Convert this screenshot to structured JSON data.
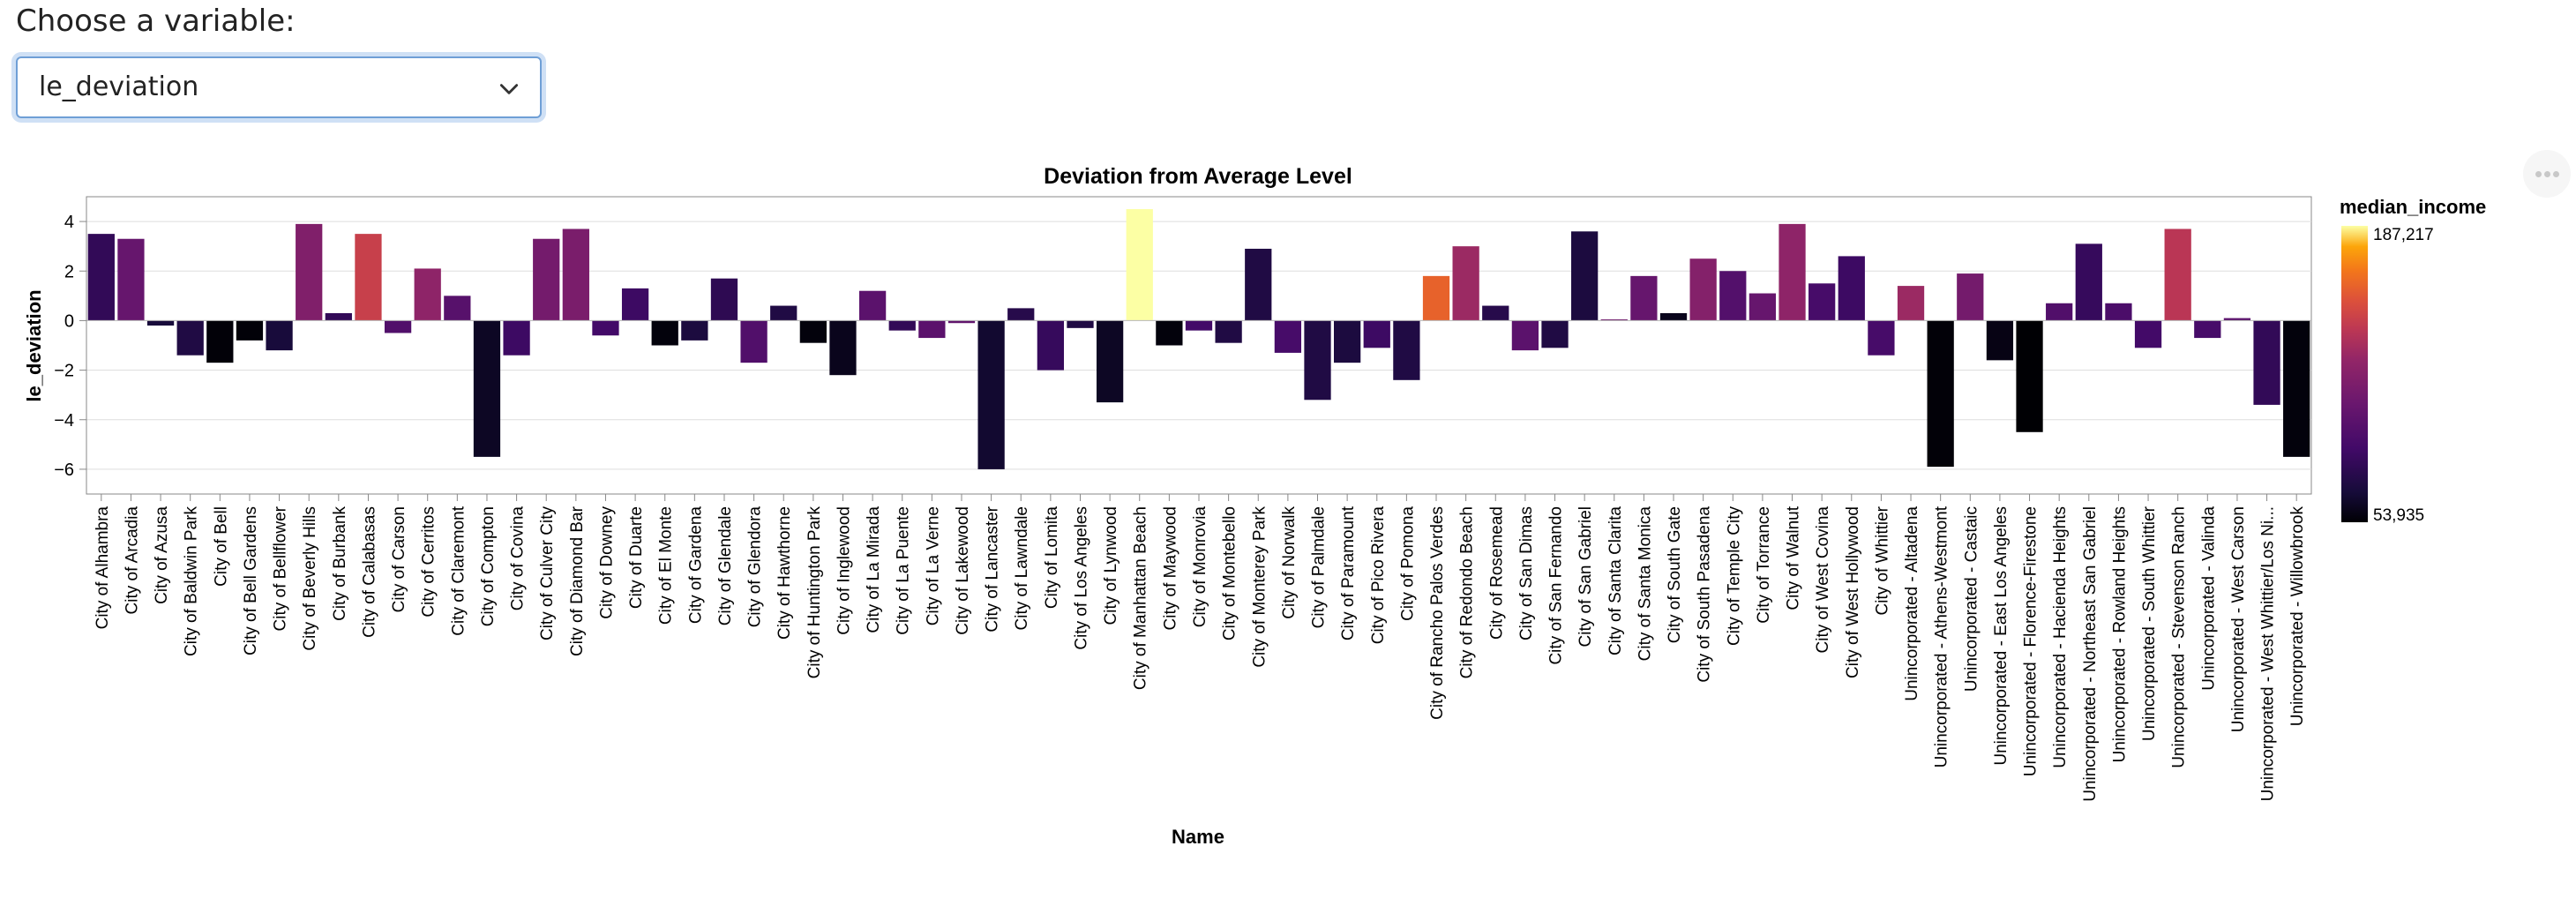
{
  "control": {
    "prompt": "Choose a variable:",
    "selected": "le_deviation"
  },
  "chart_data": {
    "type": "bar",
    "title": "Deviation from Average Level",
    "xlabel": "Name",
    "ylabel": "le_deviation",
    "ylim": [
      -7,
      5
    ],
    "yticks": [
      4,
      2,
      0,
      -2,
      -4,
      -6
    ],
    "grid": true,
    "legend": {
      "title": "median_income",
      "min_label": "53,935",
      "max_label": "187,217",
      "min": 53935,
      "max": 187217,
      "placement": "right"
    },
    "categories": [
      "City of Alhambra",
      "City of Arcadia",
      "City of Azusa",
      "City of Baldwin Park",
      "City of Bell",
      "City of Bell Gardens",
      "City of Bellflower",
      "City of Beverly Hills",
      "City of Burbank",
      "City of Calabasas",
      "City of Carson",
      "City of Cerritos",
      "City of Claremont",
      "City of Compton",
      "City of Covina",
      "City of Culver City",
      "City of Diamond Bar",
      "City of Downey",
      "City of Duarte",
      "City of El Monte",
      "City of Gardena",
      "City of Glendale",
      "City of Glendora",
      "City of Hawthorne",
      "City of Huntington Park",
      "City of Inglewood",
      "City of La Mirada",
      "City of La Puente",
      "City of La Verne",
      "City of Lakewood",
      "City of Lancaster",
      "City of Lawndale",
      "City of Lomita",
      "City of Los Angeles",
      "City of Lynwood",
      "City of Manhattan Beach",
      "City of Maywood",
      "City of Monrovia",
      "City of Montebello",
      "City of Monterey Park",
      "City of Norwalk",
      "City of Palmdale",
      "City of Paramount",
      "City of Pico Rivera",
      "City of Pomona",
      "City of Rancho Palos Verdes",
      "City of Redondo Beach",
      "City of Rosemead",
      "City of San Dimas",
      "City of San Fernando",
      "City of San Gabriel",
      "City of Santa Clarita",
      "City of Santa Monica",
      "City of South Gate",
      "City of South Pasadena",
      "City of Temple City",
      "City of Torrance",
      "City of Walnut",
      "City of West Covina",
      "City of West Hollywood",
      "City of Whittier",
      "Unincorporated - Altadena",
      "Unincorporated - Athens-Westmont",
      "Unincorporated - Castaic",
      "Unincorporated - East Los Angeles",
      "Unincorporated - Florence-Firestone",
      "Unincorporated - Hacienda Heights",
      "Unincorporated - Northeast San Gabriel",
      "Unincorporated - Rowland Heights",
      "Unincorporated - South Whittier",
      "Unincorporated - Stevenson Ranch",
      "Unincorporated - Valinda",
      "Unincorporated - West Carson",
      "Unincorporated - West Whittier/Los Ni...",
      "Unincorporated - Willowbrook"
    ],
    "values": [
      3.5,
      3.3,
      -0.2,
      -1.4,
      -1.7,
      -0.8,
      -1.2,
      3.9,
      0.3,
      3.5,
      -0.5,
      2.1,
      1.0,
      -5.5,
      -1.4,
      3.3,
      3.7,
      -0.6,
      1.3,
      -1.0,
      -0.8,
      1.7,
      -1.7,
      0.6,
      -0.9,
      -2.2,
      1.2,
      -0.4,
      -0.7,
      -0.1,
      -6.0,
      0.5,
      -2.0,
      -0.3,
      -3.3,
      4.5,
      -1.0,
      -0.4,
      -0.9,
      2.9,
      -1.3,
      -3.2,
      -1.7,
      -1.1,
      -2.4,
      1.8,
      3.0,
      0.6,
      -1.2,
      -1.1,
      3.6,
      0.05,
      1.8,
      0.3,
      2.5,
      2.0,
      1.1,
      3.9,
      1.5,
      2.6,
      -1.4,
      1.4,
      -5.9,
      1.9,
      -1.6,
      -4.5,
      0.7,
      3.1,
      0.7,
      -1.1,
      3.7,
      -0.7,
      0.1,
      -3.4,
      -5.5
    ],
    "median_income": [
      80000,
      105000,
      68000,
      72000,
      55000,
      55000,
      68000,
      118000,
      80000,
      145000,
      95000,
      125000,
      98000,
      62000,
      85000,
      112000,
      115000,
      88000,
      85000,
      56000,
      70000,
      78000,
      95000,
      72000,
      56000,
      60000,
      100000,
      80000,
      100000,
      102000,
      65000,
      75000,
      82000,
      72000,
      62000,
      187217,
      56000,
      88000,
      72000,
      72000,
      90000,
      72000,
      70000,
      85000,
      72000,
      160000,
      130000,
      75000,
      100000,
      72000,
      70000,
      110000,
      105000,
      60000,
      120000,
      96000,
      105000,
      125000,
      90000,
      85000,
      90000,
      130000,
      55000,
      112000,
      58000,
      53935,
      95000,
      82000,
      92000,
      88000,
      140000,
      90000,
      100000,
      80000,
      56000
    ]
  }
}
